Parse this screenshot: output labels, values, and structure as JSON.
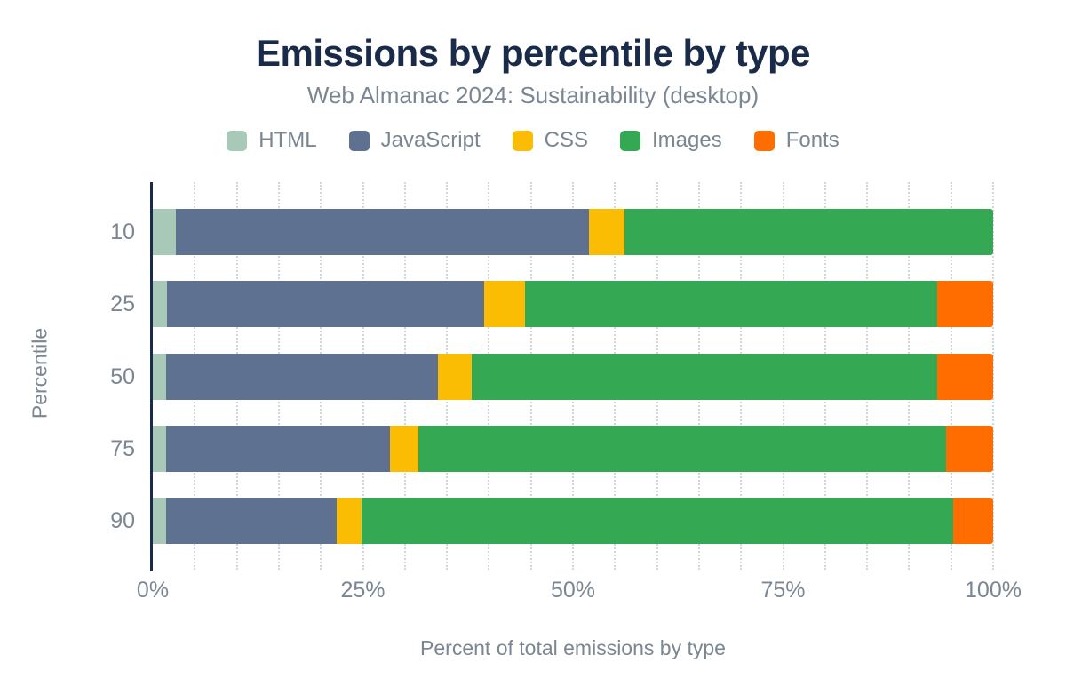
{
  "page": {
    "background_color": "#ffffff",
    "title_color": "#1a2b49",
    "muted_text_color": "#7b8693",
    "axis_line_color": "#1a2b49",
    "gridline_color": "#d2d6da"
  },
  "chart_data": {
    "type": "bar",
    "variant": "horizontal-stacked",
    "title": "Emissions by percentile by type",
    "subtitle": "Web Almanac 2024: Sustainability (desktop)",
    "xlabel": "Percent of total emissions by type",
    "ylabel": "Percentile",
    "categories": [
      "10",
      "25",
      "50",
      "75",
      "90"
    ],
    "xlim": [
      0,
      100
    ],
    "x_ticks": [
      {
        "value": 0,
        "label": "0%"
      },
      {
        "value": 25,
        "label": "25%"
      },
      {
        "value": 50,
        "label": "50%"
      },
      {
        "value": 75,
        "label": "75%"
      },
      {
        "value": 100,
        "label": "100%"
      }
    ],
    "grid": "dotted vertical minor gridlines every 5%",
    "legend_position": "top",
    "series": [
      {
        "name": "HTML",
        "color": "#a8c8b8",
        "values": [
          2.8,
          1.7,
          1.6,
          1.6,
          1.6
        ]
      },
      {
        "name": "JavaScript",
        "color": "#5f7190",
        "values": [
          49.1,
          37.7,
          32.3,
          26.6,
          20.3
        ]
      },
      {
        "name": "CSS",
        "color": "#fbbc04",
        "values": [
          4.2,
          4.9,
          4.0,
          3.4,
          2.9
        ]
      },
      {
        "name": "Images",
        "color": "#34a853",
        "values": [
          43.9,
          49.0,
          55.4,
          62.8,
          70.4
        ]
      },
      {
        "name": "Fonts",
        "color": "#ff6d01",
        "values": [
          0.0,
          6.7,
          6.7,
          5.6,
          4.8
        ]
      }
    ]
  }
}
